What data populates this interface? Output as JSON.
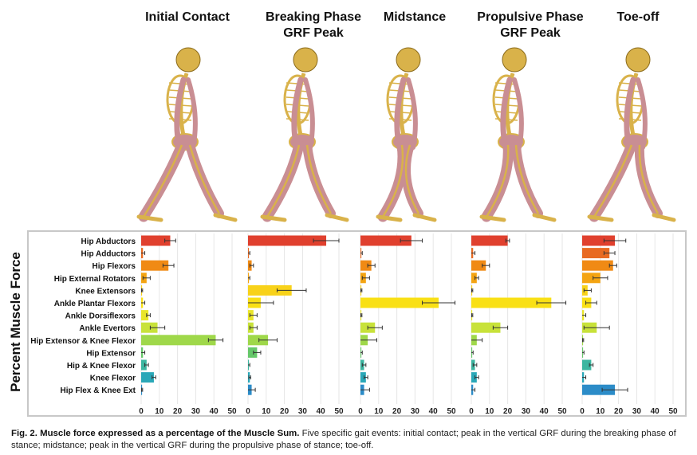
{
  "figure": {
    "phases": [
      {
        "id": "initial-contact",
        "title": "Initial Contact"
      },
      {
        "id": "breaking",
        "title": "Breaking Phase\nGRF Peak"
      },
      {
        "id": "midstance",
        "title": "Midstance"
      },
      {
        "id": "propulsive",
        "title": "Propulsive Phase\nGRF Peak"
      },
      {
        "id": "toe-off",
        "title": "Toe-off"
      }
    ],
    "y_axis_label": "Percent Muscle Force",
    "caption": {
      "bold": "Fig. 2. Muscle force expressed as a percentage of the Muscle Sum.",
      "text": " Five specific gait events: initial contact; peak in the vertical GRF during the breaking phase of stance; midstance; peak in the vertical GRF during the propulsive phase of stance; toe-off."
    },
    "colors": {
      "skeleton_bone": "#d9b24a",
      "skeleton_muscle": "#c98e93",
      "grid": "#e6e6e6"
    }
  },
  "chart_data": {
    "type": "bar",
    "orientation": "horizontal",
    "categories": [
      "Hip Abductors",
      "Hip Adductors",
      "Hip Flexors",
      "Hip External Rotators",
      "Knee Extensors",
      "Ankle Plantar Flexors",
      "Ankle Dorsiflexors",
      "Ankle Evertors",
      "Hip Extensor & Knee Flexor",
      "Hip Extensor",
      "Hip & Knee Flexor",
      "Knee Flexor",
      "Hip Flex & Knee Ext"
    ],
    "category_colors": [
      "#e0402e",
      "#e86a22",
      "#f08a14",
      "#f4a412",
      "#f8d21a",
      "#f9e015",
      "#e9e52a",
      "#c8e23a",
      "#9fd84a",
      "#66c86a",
      "#3cb6a0",
      "#2aa8b8",
      "#2c8cc8"
    ],
    "xlim": [
      0,
      50
    ],
    "xticks": [
      0,
      10,
      20,
      30,
      40,
      50
    ],
    "grid": true,
    "panels": [
      {
        "name": "Initial Contact",
        "values": [
          16,
          1,
          15,
          3,
          0.5,
          1,
          4,
          9,
          41,
          1,
          3,
          7,
          0.5
        ],
        "errors": [
          3,
          1,
          3,
          2,
          0.3,
          1,
          1,
          4,
          4,
          1,
          1,
          1,
          0.3
        ]
      },
      {
        "name": "Breaking Phase GRF Peak",
        "values": [
          43,
          0.5,
          2,
          0.5,
          24,
          7,
          3,
          3,
          11,
          5,
          0.5,
          1,
          2
        ],
        "errors": [
          7,
          0.5,
          1,
          0.5,
          8,
          7,
          2,
          2,
          5,
          2,
          0.5,
          0.5,
          2
        ]
      },
      {
        "name": "Midstance",
        "values": [
          28,
          0.5,
          6,
          3,
          0.5,
          43,
          0.5,
          8,
          4,
          0.5,
          2,
          3,
          2
        ],
        "errors": [
          6,
          0.5,
          2,
          2,
          0.3,
          9,
          0.3,
          4,
          5,
          0.5,
          1,
          1,
          3
        ]
      },
      {
        "name": "Propulsive Phase GRF Peak",
        "values": [
          20,
          1,
          8,
          3,
          0.5,
          44,
          0.5,
          16,
          3,
          0.5,
          2,
          3,
          1
        ],
        "errors": [
          1,
          1,
          2,
          1,
          0.3,
          8,
          0.3,
          4,
          3,
          0.5,
          1,
          1,
          1
        ]
      },
      {
        "name": "Toe-off",
        "values": [
          18,
          15,
          17,
          10,
          3,
          5,
          1,
          8,
          0.5,
          0.5,
          5,
          1,
          18
        ],
        "errors": [
          6,
          3,
          2,
          4,
          2,
          3,
          1,
          7,
          0.3,
          0.5,
          1,
          1,
          7
        ]
      }
    ]
  }
}
